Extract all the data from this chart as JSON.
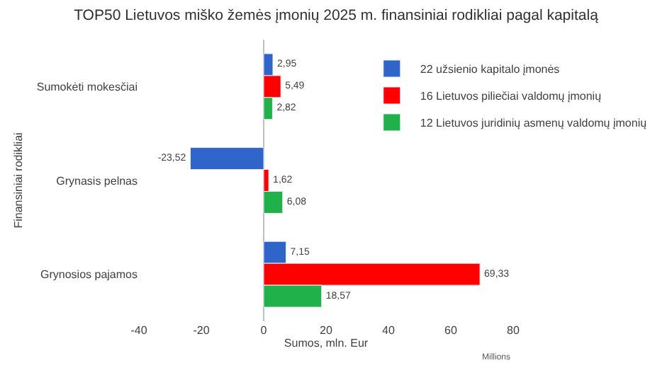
{
  "chart_data": {
    "type": "bar",
    "orientation": "horizontal",
    "title": "TOP50 Lietuvos miško žemės įmonių 2025 m. finansiniai rodikliai pagal kapitalą",
    "xlabel": "Sumos, mln. Eur",
    "ylabel": "Finansiniai rodikliai",
    "categories": [
      "Sumokėti mokesčiai",
      "Grynasis pelnas",
      "Grynosios pajamos"
    ],
    "series": [
      {
        "name": "22 užsienio kapitalo įmonės",
        "color": "#2f64c8",
        "values": [
          2.95,
          -23.52,
          7.15
        ],
        "value_labels": [
          "2,95",
          "-23,52",
          "7,15"
        ]
      },
      {
        "name": "16 Lietuvos piliečiai valdomų įmonių",
        "color": "#ff0000",
        "values": [
          5.49,
          1.62,
          69.33
        ],
        "value_labels": [
          "5,49",
          "1,62",
          "69,33"
        ]
      },
      {
        "name": "12 Lietuvos juridinių asmenų valdomų įmonių",
        "color": "#21b14b",
        "values": [
          2.82,
          6.08,
          18.57
        ],
        "value_labels": [
          "2,82",
          "6,08",
          "18,57"
        ]
      }
    ],
    "xlim": [
      -40,
      80
    ],
    "xticks": [
      -40,
      -20,
      0,
      20,
      40,
      60,
      80
    ],
    "annotations": [
      "Millions"
    ],
    "ref_lines": [
      {
        "axis": "x",
        "value": 0,
        "color": "#bfbfbf"
      }
    ],
    "legend": "top right",
    "grid": false
  }
}
